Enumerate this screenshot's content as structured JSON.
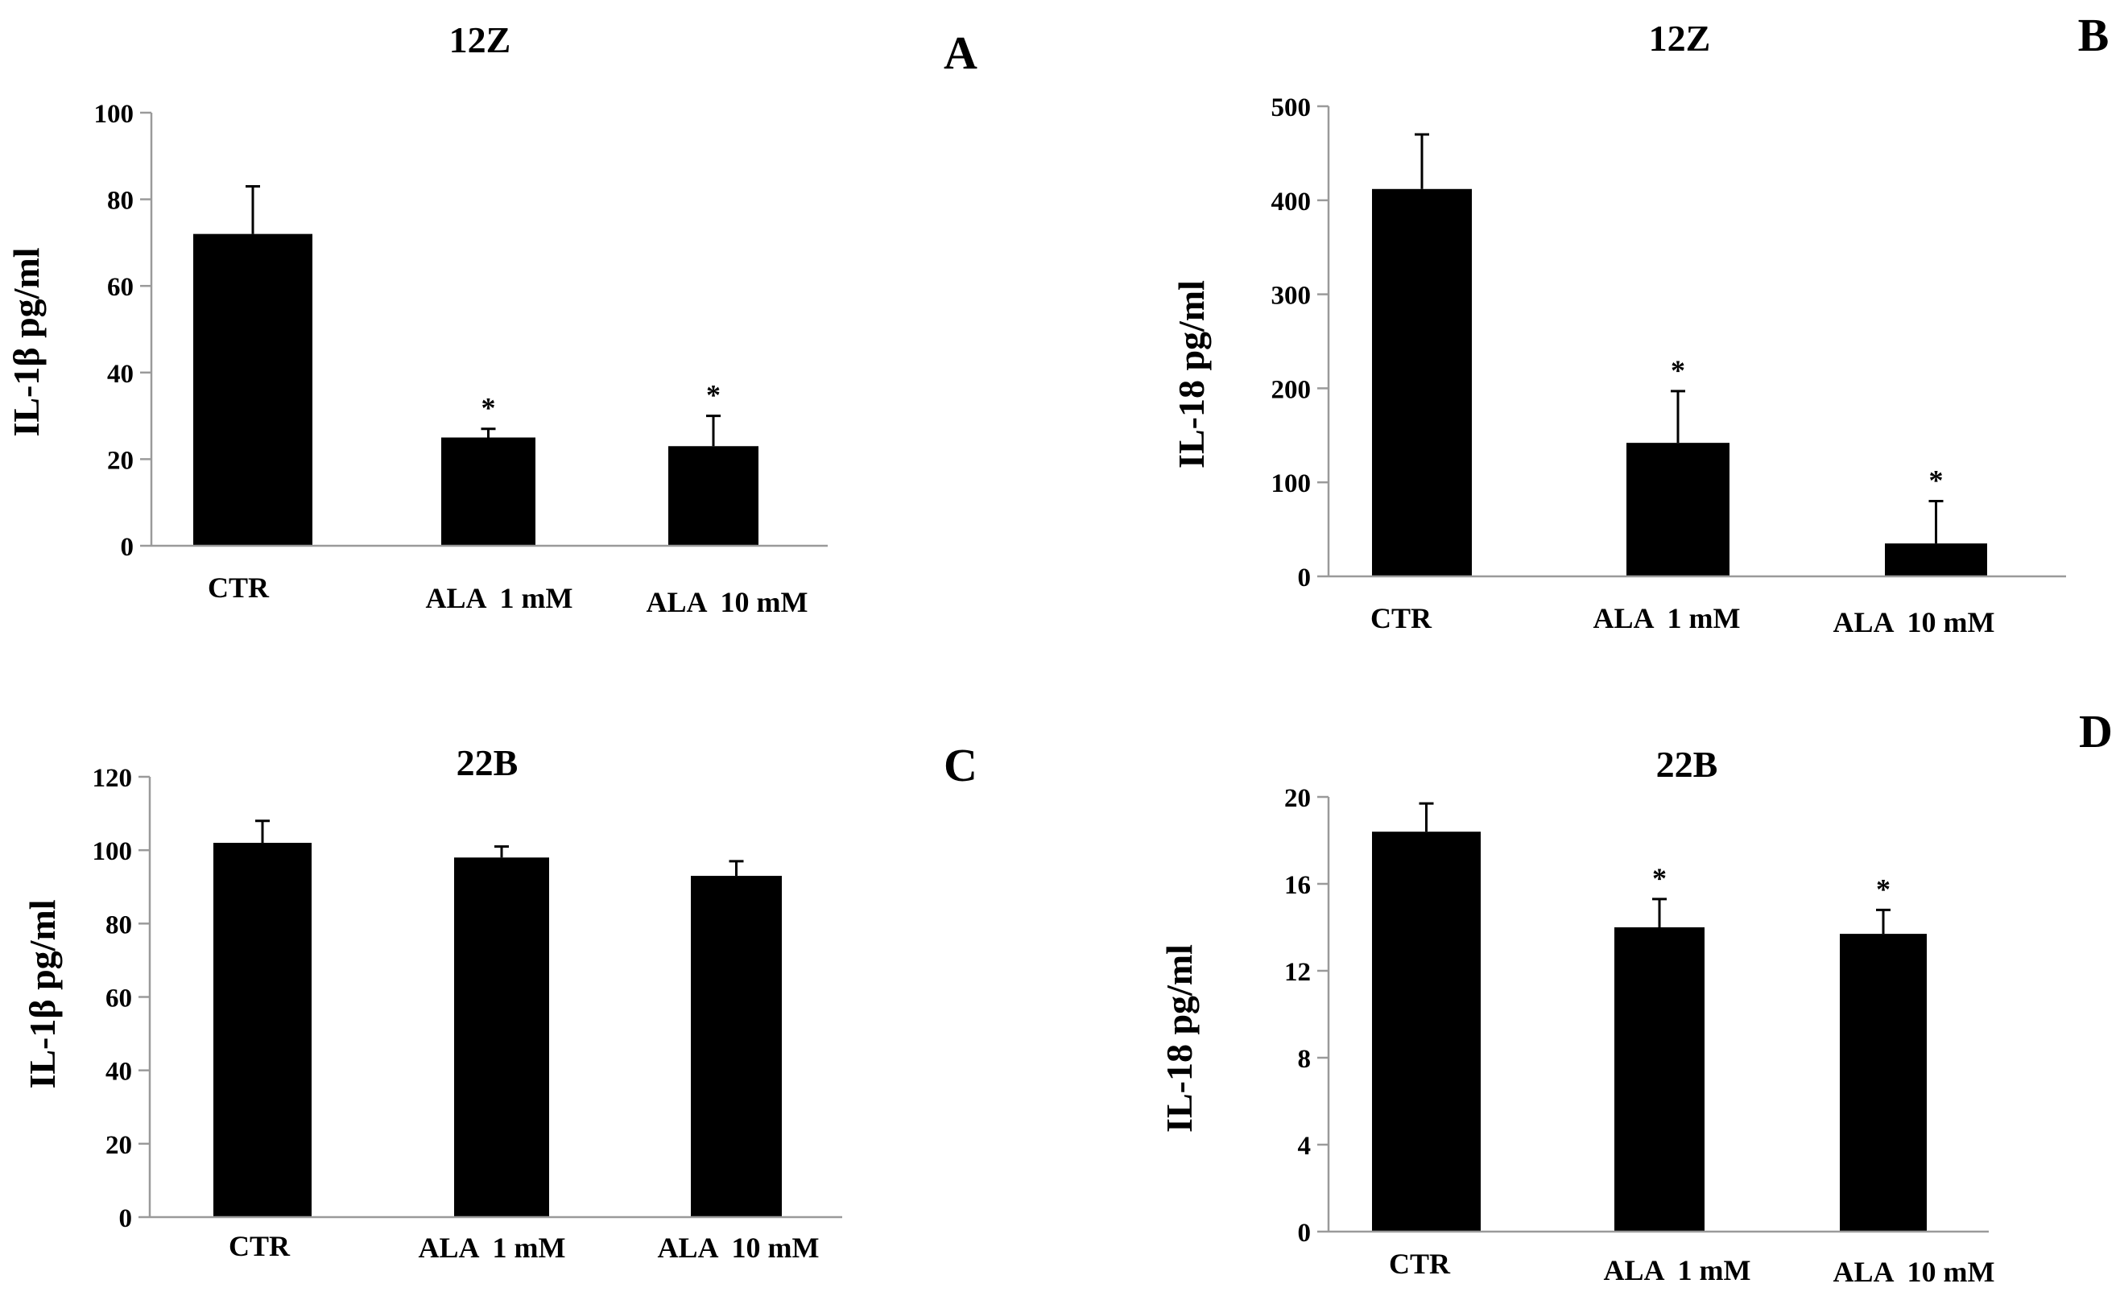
{
  "chart_data": [
    {
      "id": "A",
      "type": "bar",
      "panel_label": "A",
      "title": "12Z",
      "ylabel": "IL-1β  pg/ml",
      "xlabel": "",
      "ylim": [
        0,
        100
      ],
      "yticks": [
        0,
        20,
        40,
        60,
        80,
        100
      ],
      "categories": [
        "CTR",
        "ALA  1 mM",
        "ALA  10 mM"
      ],
      "values": [
        72,
        25,
        23
      ],
      "errors": [
        11,
        2,
        7
      ],
      "significance": [
        "",
        "*",
        "*"
      ]
    },
    {
      "id": "B",
      "type": "bar",
      "panel_label": "B",
      "title": "12Z",
      "ylabel": "IL-18  pg/ml",
      "xlabel": "",
      "ylim": [
        0,
        500
      ],
      "yticks": [
        0,
        100,
        200,
        300,
        400,
        500
      ],
      "categories": [
        "CTR",
        "ALA  1 mM",
        "ALA  10 mM"
      ],
      "values": [
        412,
        142,
        35
      ],
      "errors": [
        58,
        55,
        45
      ],
      "significance": [
        "",
        "*",
        "*"
      ]
    },
    {
      "id": "C",
      "type": "bar",
      "panel_label": "C",
      "title": "22B",
      "ylabel": "IL-1β  pg/ml",
      "xlabel": "",
      "ylim": [
        0,
        120
      ],
      "yticks": [
        0,
        20,
        40,
        60,
        80,
        100,
        120
      ],
      "categories": [
        "CTR",
        "ALA  1 mM",
        "ALA  10 mM"
      ],
      "values": [
        102,
        98,
        93
      ],
      "errors": [
        6,
        3,
        4
      ],
      "significance": [
        "",
        "",
        ""
      ]
    },
    {
      "id": "D",
      "type": "bar",
      "panel_label": "D",
      "title": "22B",
      "ylabel": "IL-18  pg/ml",
      "xlabel": "",
      "ylim": [
        0,
        20
      ],
      "yticks": [
        0,
        4,
        8,
        12,
        16,
        20
      ],
      "categories": [
        "CTR",
        "ALA  1 mM",
        "ALA  10 mM"
      ],
      "values": [
        18.4,
        14.0,
        13.7
      ],
      "errors": [
        1.3,
        1.3,
        1.1
      ],
      "significance": [
        "",
        "*",
        "*"
      ]
    }
  ]
}
